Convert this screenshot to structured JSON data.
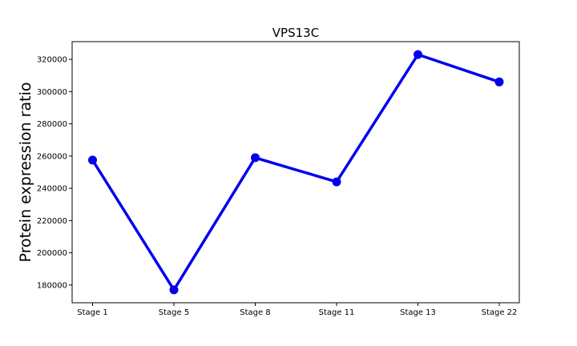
{
  "chart_data": {
    "type": "line",
    "title": "VPS13C",
    "xlabel": "",
    "ylabel": "Protein expression ratio",
    "categories": [
      "Stage 1",
      "Stage 5",
      "Stage 8",
      "Stage 11",
      "Stage 13",
      "Stage 22"
    ],
    "series": [
      {
        "values": [
          257500,
          177000,
          259000,
          244000,
          323000,
          306000
        ],
        "color": "#0000ee"
      }
    ],
    "ylim": [
      169000,
      331000
    ],
    "yticks": [
      180000,
      200000,
      220000,
      240000,
      260000,
      280000,
      300000,
      320000
    ],
    "grid": false,
    "legend": "none"
  }
}
